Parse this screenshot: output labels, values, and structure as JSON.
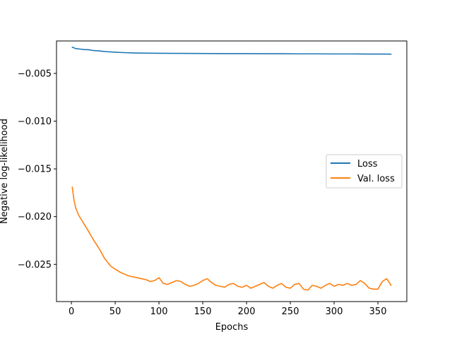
{
  "chart_data": {
    "type": "line",
    "title": "",
    "xlabel": "Epochs",
    "ylabel": "Negative log-likelihood",
    "xlim": [
      -17,
      383
    ],
    "ylim": [
      -0.0289,
      -0.0016
    ],
    "xticks": [
      0,
      50,
      100,
      150,
      200,
      250,
      300,
      350
    ],
    "xtick_labels": [
      "0",
      "50",
      "100",
      "150",
      "200",
      "250",
      "300",
      "350"
    ],
    "yticks": [
      -0.005,
      -0.01,
      -0.015,
      -0.02,
      -0.025
    ],
    "ytick_labels": [
      "−0.005",
      "−0.010",
      "−0.015",
      "−0.020",
      "−0.025"
    ],
    "grid": false,
    "legend_position": "center-right",
    "series": [
      {
        "name": "Loss",
        "color": "#1f77b4",
        "x": [
          1,
          5,
          10,
          15,
          20,
          25,
          30,
          35,
          40,
          50,
          60,
          70,
          80,
          90,
          100,
          120,
          140,
          160,
          180,
          200,
          220,
          240,
          260,
          280,
          300,
          320,
          340,
          350,
          360,
          365
        ],
        "y": [
          -0.00225,
          -0.0024,
          -0.00245,
          -0.0025,
          -0.00252,
          -0.0026,
          -0.00262,
          -0.00268,
          -0.00272,
          -0.00278,
          -0.00282,
          -0.00285,
          -0.00287,
          -0.00288,
          -0.00289,
          -0.0029,
          -0.00291,
          -0.00292,
          -0.00293,
          -0.00293,
          -0.00294,
          -0.00294,
          -0.00295,
          -0.00295,
          -0.00296,
          -0.00296,
          -0.00297,
          -0.00297,
          -0.00297,
          -0.00298
        ]
      },
      {
        "name": "Val. loss",
        "color": "#ff7f0e",
        "x": [
          1,
          3,
          5,
          8,
          12,
          18,
          25,
          32,
          38,
          45,
          50,
          55,
          60,
          65,
          70,
          75,
          80,
          85,
          90,
          95,
          100,
          105,
          110,
          115,
          120,
          125,
          130,
          135,
          140,
          145,
          150,
          155,
          160,
          165,
          170,
          175,
          180,
          185,
          190,
          195,
          200,
          205,
          210,
          215,
          220,
          225,
          230,
          235,
          240,
          245,
          250,
          255,
          260,
          265,
          270,
          275,
          280,
          285,
          290,
          295,
          300,
          305,
          310,
          315,
          320,
          325,
          330,
          335,
          340,
          345,
          350,
          355,
          360,
          365
        ],
        "y": [
          -0.0169,
          -0.0183,
          -0.0191,
          -0.0198,
          -0.0204,
          -0.0213,
          -0.0224,
          -0.0234,
          -0.0244,
          -0.0252,
          -0.0255,
          -0.0258,
          -0.026,
          -0.0262,
          -0.0263,
          -0.0264,
          -0.0265,
          -0.0266,
          -0.0268,
          -0.0267,
          -0.0264,
          -0.027,
          -0.0271,
          -0.0269,
          -0.0267,
          -0.0268,
          -0.0271,
          -0.0273,
          -0.0272,
          -0.027,
          -0.0267,
          -0.0265,
          -0.0269,
          -0.0272,
          -0.0273,
          -0.0274,
          -0.0271,
          -0.027,
          -0.0273,
          -0.0274,
          -0.0272,
          -0.0275,
          -0.0273,
          -0.0271,
          -0.0269,
          -0.0273,
          -0.0275,
          -0.0272,
          -0.027,
          -0.0274,
          -0.0275,
          -0.0271,
          -0.027,
          -0.0276,
          -0.0277,
          -0.0272,
          -0.0273,
          -0.0275,
          -0.0272,
          -0.027,
          -0.0273,
          -0.0271,
          -0.0272,
          -0.027,
          -0.0272,
          -0.0271,
          -0.0267,
          -0.027,
          -0.0275,
          -0.0276,
          -0.0276,
          -0.0268,
          -0.0265,
          -0.0272
        ]
      }
    ]
  }
}
